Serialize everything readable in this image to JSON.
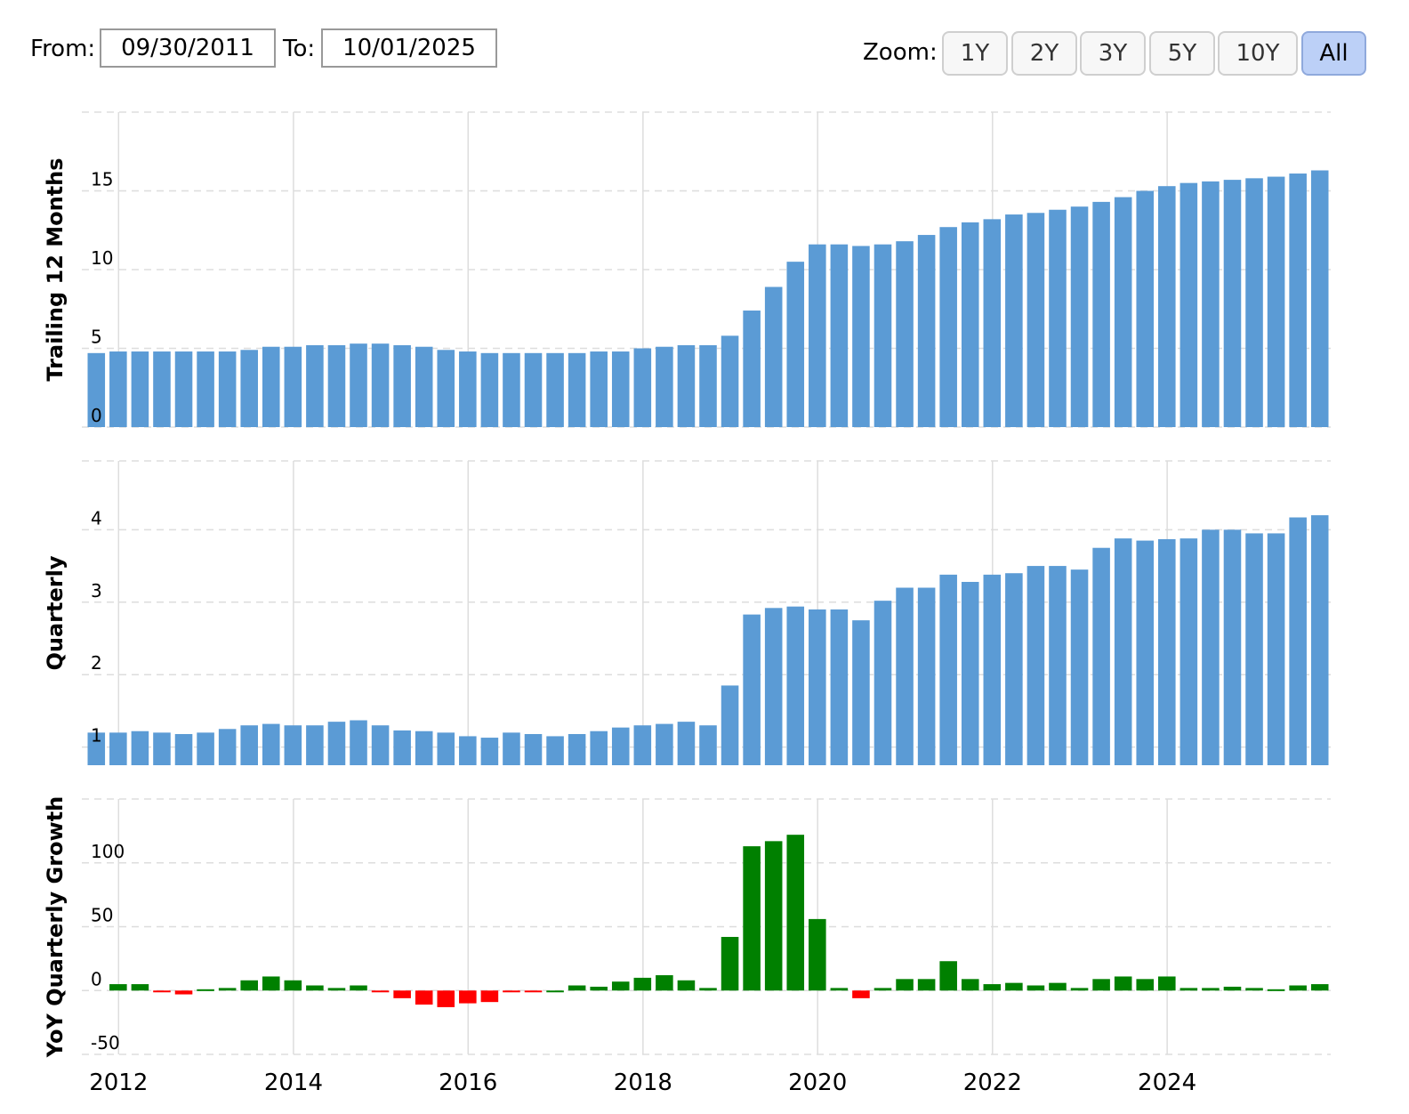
{
  "toolbar": {
    "from_label": "From:",
    "from_value": "09/30/2011",
    "to_label": "To:",
    "to_value": "10/01/2025",
    "zoom_label": "Zoom:",
    "zoom_buttons": [
      "1Y",
      "2Y",
      "3Y",
      "5Y",
      "10Y",
      "All"
    ],
    "zoom_active": "All"
  },
  "colors": {
    "bar": "#5b9bd5",
    "growth_positive": "#008000",
    "growth_negative": "#ff0000",
    "grid": "#dddddd"
  },
  "chart_data": [
    {
      "type": "bar",
      "ylabel": "Trailing 12 Months",
      "ylim": [
        0,
        20
      ],
      "yticks": [
        0,
        5,
        10,
        15
      ],
      "grid": true,
      "x": [
        "2011-09-30",
        "2011-12-31",
        "2012-03-31",
        "2012-06-30",
        "2012-09-30",
        "2012-12-31",
        "2013-03-31",
        "2013-06-30",
        "2013-09-30",
        "2013-12-31",
        "2014-03-31",
        "2014-06-30",
        "2014-09-30",
        "2014-12-31",
        "2015-03-31",
        "2015-06-30",
        "2015-09-30",
        "2015-12-31",
        "2016-03-31",
        "2016-06-30",
        "2016-09-30",
        "2016-12-31",
        "2017-03-31",
        "2017-06-30",
        "2017-09-30",
        "2017-12-31",
        "2018-03-31",
        "2018-06-30",
        "2018-09-30",
        "2018-12-31",
        "2019-03-31",
        "2019-06-30",
        "2019-09-30",
        "2019-12-31",
        "2020-03-31",
        "2020-06-30",
        "2020-09-30",
        "2020-12-31",
        "2021-03-31",
        "2021-06-30",
        "2021-09-30",
        "2021-12-31",
        "2022-03-31",
        "2022-06-30",
        "2022-09-30",
        "2022-12-31",
        "2023-03-31",
        "2023-06-30",
        "2023-09-30",
        "2023-12-31",
        "2024-03-31",
        "2024-06-30",
        "2024-09-30",
        "2024-12-31",
        "2025-03-31",
        "2025-06-30",
        "2025-09-30"
      ],
      "values": [
        4.7,
        4.8,
        4.8,
        4.8,
        4.8,
        4.8,
        4.8,
        4.9,
        5.1,
        5.1,
        5.2,
        5.2,
        5.3,
        5.3,
        5.2,
        5.1,
        4.9,
        4.8,
        4.7,
        4.7,
        4.7,
        4.7,
        4.7,
        4.8,
        4.8,
        5.0,
        5.1,
        5.2,
        5.2,
        5.8,
        7.4,
        8.9,
        10.5,
        11.6,
        11.6,
        11.5,
        11.6,
        11.8,
        12.2,
        12.7,
        13.0,
        13.2,
        13.5,
        13.6,
        13.8,
        14.0,
        14.3,
        14.6,
        15.0,
        15.3,
        15.5,
        15.6,
        15.7,
        15.8,
        15.9,
        16.1,
        16.3
      ],
      "x_ticks": [
        "2012",
        "2014",
        "2016",
        "2018",
        "2020",
        "2022",
        "2024"
      ]
    },
    {
      "type": "bar",
      "ylabel": "Quarterly",
      "ylim": [
        0.75,
        4.95
      ],
      "yticks": [
        1,
        2,
        3,
        4
      ],
      "grid": true,
      "x": [
        "2011-09-30",
        "2011-12-31",
        "2012-03-31",
        "2012-06-30",
        "2012-09-30",
        "2012-12-31",
        "2013-03-31",
        "2013-06-30",
        "2013-09-30",
        "2013-12-31",
        "2014-03-31",
        "2014-06-30",
        "2014-09-30",
        "2014-12-31",
        "2015-03-31",
        "2015-06-30",
        "2015-09-30",
        "2015-12-31",
        "2016-03-31",
        "2016-06-30",
        "2016-09-30",
        "2016-12-31",
        "2017-03-31",
        "2017-06-30",
        "2017-09-30",
        "2017-12-31",
        "2018-03-31",
        "2018-06-30",
        "2018-09-30",
        "2018-12-31",
        "2019-03-31",
        "2019-06-30",
        "2019-09-30",
        "2019-12-31",
        "2020-03-31",
        "2020-06-30",
        "2020-09-30",
        "2020-12-31",
        "2021-03-31",
        "2021-06-30",
        "2021-09-30",
        "2021-12-31",
        "2022-03-31",
        "2022-06-30",
        "2022-09-30",
        "2022-12-31",
        "2023-03-31",
        "2023-06-30",
        "2023-09-30",
        "2023-12-31",
        "2024-03-31",
        "2024-06-30",
        "2024-09-30",
        "2024-12-31",
        "2025-03-31",
        "2025-06-30",
        "2025-09-30"
      ],
      "values": [
        1.2,
        1.2,
        1.22,
        1.2,
        1.18,
        1.2,
        1.25,
        1.3,
        1.32,
        1.3,
        1.3,
        1.35,
        1.37,
        1.3,
        1.23,
        1.22,
        1.2,
        1.15,
        1.13,
        1.2,
        1.18,
        1.15,
        1.18,
        1.22,
        1.27,
        1.3,
        1.32,
        1.35,
        1.3,
        1.85,
        2.83,
        2.92,
        2.94,
        2.9,
        2.9,
        2.75,
        3.02,
        3.2,
        3.2,
        3.38,
        3.28,
        3.38,
        3.4,
        3.5,
        3.5,
        3.45,
        3.75,
        3.88,
        3.85,
        3.87,
        3.88,
        4.0,
        4.0,
        3.95,
        3.95,
        4.17,
        4.2
      ]
    },
    {
      "type": "bar",
      "ylabel": "YoY Quarterly Growth",
      "ylim": [
        -50,
        150
      ],
      "yticks": [
        -50,
        0,
        50,
        100
      ],
      "grid": true,
      "x": [
        "2011-09-30",
        "2011-12-31",
        "2012-03-31",
        "2012-06-30",
        "2012-09-30",
        "2012-12-31",
        "2013-03-31",
        "2013-06-30",
        "2013-09-30",
        "2013-12-31",
        "2014-03-31",
        "2014-06-30",
        "2014-09-30",
        "2014-12-31",
        "2015-03-31",
        "2015-06-30",
        "2015-09-30",
        "2015-12-31",
        "2016-03-31",
        "2016-06-30",
        "2016-09-30",
        "2016-12-31",
        "2017-03-31",
        "2017-06-30",
        "2017-09-30",
        "2017-12-31",
        "2018-03-31",
        "2018-06-30",
        "2018-09-30",
        "2018-12-31",
        "2019-03-31",
        "2019-06-30",
        "2019-09-30",
        "2019-12-31",
        "2020-03-31",
        "2020-06-30",
        "2020-09-30",
        "2020-12-31",
        "2021-03-31",
        "2021-06-30",
        "2021-09-30",
        "2021-12-31",
        "2022-03-31",
        "2022-06-30",
        "2022-09-30",
        "2022-12-31",
        "2023-03-31",
        "2023-06-30",
        "2023-09-30",
        "2023-12-31",
        "2024-03-31",
        "2024-06-30",
        "2024-09-30",
        "2024-12-31",
        "2025-03-31",
        "2025-06-30",
        "2025-09-30"
      ],
      "values": [
        null,
        5,
        5,
        -1,
        -3,
        1,
        2,
        8,
        11,
        8,
        4,
        2,
        4,
        -1,
        -6,
        -11,
        -13,
        -10,
        -9,
        -1,
        -1,
        0,
        4,
        3,
        7,
        10,
        12,
        8,
        2,
        42,
        113,
        117,
        122,
        56,
        2,
        -6,
        2,
        9,
        9,
        23,
        9,
        5,
        6,
        4,
        6,
        2,
        9,
        11,
        9,
        11,
        2,
        2,
        3,
        2,
        1,
        4,
        5
      ]
    }
  ]
}
